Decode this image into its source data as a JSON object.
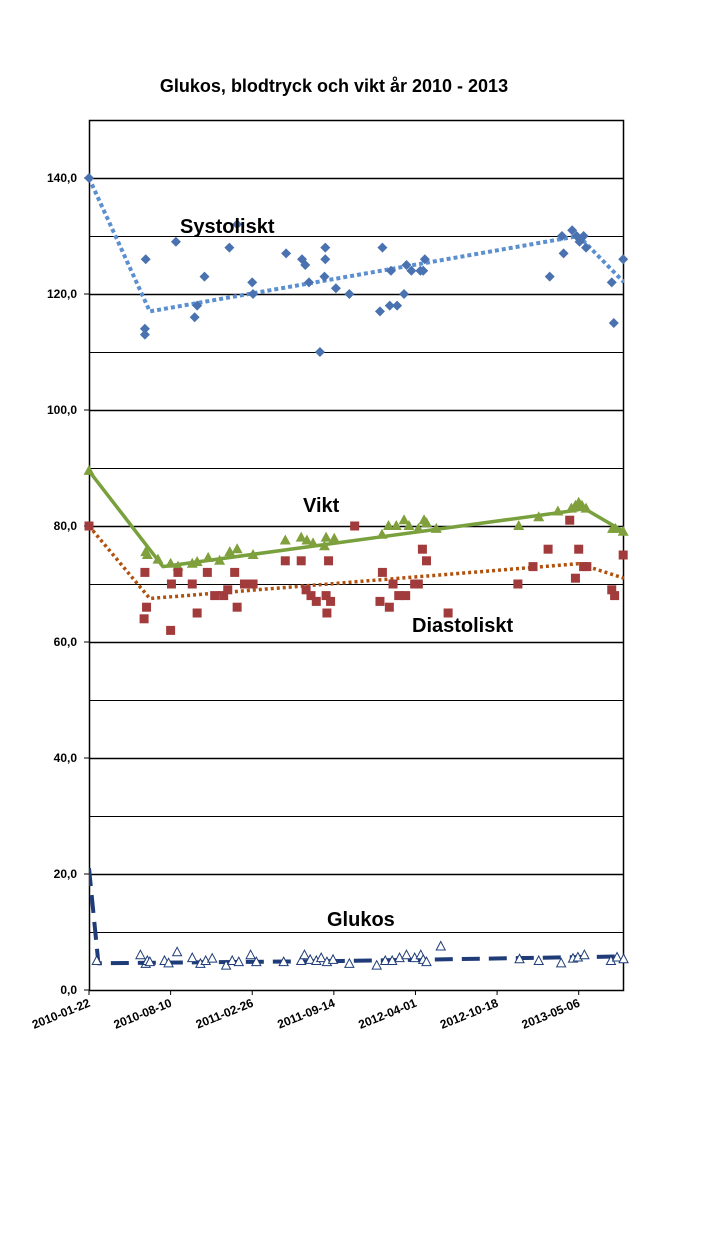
{
  "chart_data": {
    "type": "scatter",
    "title": "Glukos, blodtryck och vikt år 2010 - 2013",
    "xlabel": "",
    "ylabel": "",
    "ylim": [
      0,
      150
    ],
    "xlim": [
      "2010-01-22",
      "2013-08-25"
    ],
    "y_ticks": [
      "0,0",
      "20,0",
      "40,0",
      "60,0",
      "80,0",
      "100,0",
      "120,0",
      "140,0"
    ],
    "x_ticks": [
      "2010-01-22",
      "2010-08-10",
      "2011-02-26",
      "2011-09-14",
      "2012-04-01",
      "2012-10-18",
      "2013-05-06"
    ],
    "grid": "horizontal major and minor",
    "legend": "none",
    "annotations": [
      "Systoliskt",
      "Vikt",
      "Diastoliskt",
      "Glukos"
    ],
    "colors": {
      "systoliskt": "#4a72b0",
      "systoliskt_trend": "#5b8fd0",
      "diastoliskt": "#a23b3b",
      "diastoliskt_trend": "#b0520e",
      "vikt": "#7fa03c",
      "vikt_trend": "#78a03c",
      "glukos": "#1f3c78"
    },
    "series": [
      {
        "key": "systoliskt",
        "marker": "diamond",
        "points": [
          [
            "2010-01-22",
            140
          ],
          [
            "2010-06-08",
            113
          ],
          [
            "2010-06-08",
            114
          ],
          [
            "2010-06-10",
            126
          ],
          [
            "2010-08-23",
            129
          ],
          [
            "2010-10-08",
            116
          ],
          [
            "2010-10-14",
            118
          ],
          [
            "2010-11-01",
            123
          ],
          [
            "2011-01-01",
            128
          ],
          [
            "2011-01-20",
            132
          ],
          [
            "2011-02-26",
            122
          ],
          [
            "2011-02-28",
            120
          ],
          [
            "2011-05-20",
            127
          ],
          [
            "2011-06-28",
            126
          ],
          [
            "2011-07-06",
            125
          ],
          [
            "2011-07-15",
            122
          ],
          [
            "2011-08-11",
            110
          ],
          [
            "2011-08-22",
            123
          ],
          [
            "2011-08-24",
            126
          ],
          [
            "2011-08-24",
            128
          ],
          [
            "2011-09-19",
            121
          ],
          [
            "2011-10-22",
            120
          ],
          [
            "2012-01-05",
            117
          ],
          [
            "2012-01-11",
            128
          ],
          [
            "2012-01-29",
            118
          ],
          [
            "2012-02-01",
            124
          ],
          [
            "2012-02-16",
            118
          ],
          [
            "2012-03-04",
            120
          ],
          [
            "2012-03-10",
            125
          ],
          [
            "2012-03-22",
            124
          ],
          [
            "2012-04-13",
            124
          ],
          [
            "2012-04-20",
            124
          ],
          [
            "2012-04-24",
            126
          ],
          [
            "2013-02-24",
            123
          ],
          [
            "2013-03-26",
            130
          ],
          [
            "2013-03-30",
            127
          ],
          [
            "2013-04-20",
            131
          ],
          [
            "2013-05-01",
            130
          ],
          [
            "2013-05-08",
            129
          ],
          [
            "2013-05-18",
            130
          ],
          [
            "2013-05-24",
            128
          ],
          [
            "2013-07-26",
            122
          ],
          [
            "2013-07-31",
            115
          ],
          [
            "2013-08-23",
            126
          ]
        ],
        "trend": [
          [
            "2010-01-22",
            140
          ],
          [
            "2010-06-20",
            117
          ],
          [
            "2013-05-06",
            130
          ],
          [
            "2013-08-25",
            122
          ]
        ]
      },
      {
        "key": "vikt",
        "marker": "triangle",
        "points": [
          [
            "2010-01-22",
            89.5
          ],
          [
            "2010-06-10",
            75.5
          ],
          [
            "2010-06-14",
            75
          ],
          [
            "2010-07-10",
            74.2
          ],
          [
            "2010-08-10",
            73.5
          ],
          [
            "2010-08-28",
            73
          ],
          [
            "2010-10-02",
            73.5
          ],
          [
            "2010-10-14",
            73.8
          ],
          [
            "2010-11-10",
            74.5
          ],
          [
            "2010-12-08",
            74
          ],
          [
            "2011-01-02",
            75.5
          ],
          [
            "2011-01-20",
            76
          ],
          [
            "2011-02-28",
            75
          ],
          [
            "2011-05-18",
            77.5
          ],
          [
            "2011-06-26",
            78
          ],
          [
            "2011-07-10",
            77.5
          ],
          [
            "2011-07-25",
            77
          ],
          [
            "2011-08-22",
            76.5
          ],
          [
            "2011-08-26",
            78
          ],
          [
            "2011-09-15",
            77.8
          ],
          [
            "2012-01-10",
            78.5
          ],
          [
            "2012-01-26",
            80
          ],
          [
            "2012-02-14",
            80
          ],
          [
            "2012-03-04",
            81
          ],
          [
            "2012-03-16",
            80
          ],
          [
            "2012-04-08",
            79.5
          ],
          [
            "2012-04-22",
            81
          ],
          [
            "2012-04-28",
            80.5
          ],
          [
            "2012-05-22",
            79.5
          ],
          [
            "2012-12-10",
            80
          ],
          [
            "2013-01-28",
            81.5
          ],
          [
            "2013-03-16",
            82.5
          ],
          [
            "2013-04-18",
            83
          ],
          [
            "2013-04-28",
            83.5
          ],
          [
            "2013-05-06",
            84
          ],
          [
            "2013-05-14",
            83.5
          ],
          [
            "2013-05-24",
            83
          ],
          [
            "2013-07-28",
            79.5
          ],
          [
            "2013-08-04",
            79.5
          ],
          [
            "2013-08-23",
            79
          ]
        ],
        "trend": [
          [
            "2010-01-22",
            89.5
          ],
          [
            "2010-07-22",
            73
          ],
          [
            "2013-04-08",
            82.5
          ],
          [
            "2013-05-20",
            83
          ],
          [
            "2013-08-25",
            79
          ]
        ]
      },
      {
        "key": "diastoliskt",
        "marker": "square",
        "points": [
          [
            "2010-01-22",
            80
          ],
          [
            "2010-06-06",
            64
          ],
          [
            "2010-06-12",
            66
          ],
          [
            "2010-06-08",
            72
          ],
          [
            "2010-08-10",
            62
          ],
          [
            "2010-08-12",
            70
          ],
          [
            "2010-08-28",
            72
          ],
          [
            "2010-10-02",
            70
          ],
          [
            "2010-10-14",
            65
          ],
          [
            "2010-11-08",
            72
          ],
          [
            "2010-11-26",
            68
          ],
          [
            "2010-12-18",
            68
          ],
          [
            "2010-12-28",
            69
          ],
          [
            "2011-01-14",
            72
          ],
          [
            "2011-01-20",
            66
          ],
          [
            "2011-02-07",
            70
          ],
          [
            "2011-02-28",
            70
          ],
          [
            "2011-05-18",
            74
          ],
          [
            "2011-06-26",
            74
          ],
          [
            "2011-07-08",
            69
          ],
          [
            "2011-07-20",
            68
          ],
          [
            "2011-08-02",
            67
          ],
          [
            "2011-08-26",
            68
          ],
          [
            "2011-08-28",
            65
          ],
          [
            "2011-09-01",
            74
          ],
          [
            "2011-09-06",
            67
          ],
          [
            "2011-11-04",
            80
          ],
          [
            "2012-01-05",
            67
          ],
          [
            "2012-01-11",
            72
          ],
          [
            "2012-01-28",
            66
          ],
          [
            "2012-02-06",
            70
          ],
          [
            "2012-02-20",
            68
          ],
          [
            "2012-03-08",
            68
          ],
          [
            "2012-03-30",
            70
          ],
          [
            "2012-04-08",
            70
          ],
          [
            "2012-04-18",
            76
          ],
          [
            "2012-04-28",
            74
          ],
          [
            "2012-06-20",
            65
          ],
          [
            "2012-12-08",
            70
          ],
          [
            "2013-01-14",
            73
          ],
          [
            "2013-02-20",
            76
          ],
          [
            "2013-04-14",
            81
          ],
          [
            "2013-04-28",
            71
          ],
          [
            "2013-05-06",
            76
          ],
          [
            "2013-05-18",
            73
          ],
          [
            "2013-05-26",
            73
          ],
          [
            "2013-07-26",
            69
          ],
          [
            "2013-08-02",
            68
          ],
          [
            "2013-08-23",
            75
          ]
        ],
        "trend": [
          [
            "2010-01-22",
            80
          ],
          [
            "2010-06-20",
            67.5
          ],
          [
            "2013-05-06",
            73.5
          ],
          [
            "2013-08-25",
            71
          ]
        ]
      },
      {
        "key": "glukos",
        "marker": "open-triangle",
        "points": [
          [
            "2010-02-10",
            5
          ],
          [
            "2010-05-28",
            6
          ],
          [
            "2010-06-10",
            4.5
          ],
          [
            "2010-06-14",
            5
          ],
          [
            "2010-06-20",
            4.8
          ],
          [
            "2010-07-26",
            5
          ],
          [
            "2010-08-05",
            4.6
          ],
          [
            "2010-08-26",
            6.5
          ],
          [
            "2010-10-02",
            5.5
          ],
          [
            "2010-10-22",
            4.5
          ],
          [
            "2010-11-04",
            5
          ],
          [
            "2010-11-20",
            5.4
          ],
          [
            "2010-12-24",
            4.2
          ],
          [
            "2011-01-08",
            5
          ],
          [
            "2011-01-24",
            4.8
          ],
          [
            "2011-02-22",
            6
          ],
          [
            "2011-03-08",
            4.8
          ],
          [
            "2011-05-14",
            4.8
          ],
          [
            "2011-06-26",
            5
          ],
          [
            "2011-07-04",
            6
          ],
          [
            "2011-07-18",
            5.2
          ],
          [
            "2011-08-02",
            5
          ],
          [
            "2011-08-14",
            5.5
          ],
          [
            "2011-08-28",
            4.8
          ],
          [
            "2011-09-12",
            5.2
          ],
          [
            "2011-10-22",
            4.5
          ],
          [
            "2011-12-28",
            4.2
          ],
          [
            "2012-01-18",
            5
          ],
          [
            "2012-02-04",
            5
          ],
          [
            "2012-02-22",
            5.5
          ],
          [
            "2012-03-10",
            6
          ],
          [
            "2012-03-30",
            5.5
          ],
          [
            "2012-04-14",
            6
          ],
          [
            "2012-04-20",
            5.2
          ],
          [
            "2012-04-28",
            4.8
          ],
          [
            "2012-06-02",
            7.5
          ],
          [
            "2012-12-12",
            5.3
          ],
          [
            "2013-01-28",
            5
          ],
          [
            "2013-03-24",
            4.6
          ],
          [
            "2013-04-22",
            5.4
          ],
          [
            "2013-05-04",
            5.6
          ],
          [
            "2013-05-20",
            6
          ],
          [
            "2013-07-24",
            5
          ],
          [
            "2013-08-08",
            5.6
          ],
          [
            "2013-08-24",
            5.3
          ]
        ],
        "trend": [
          [
            "2010-01-22",
            21
          ],
          [
            "2010-02-14",
            4.6
          ],
          [
            "2011-10-01",
            5
          ],
          [
            "2013-08-25",
            5.8
          ]
        ]
      }
    ]
  }
}
